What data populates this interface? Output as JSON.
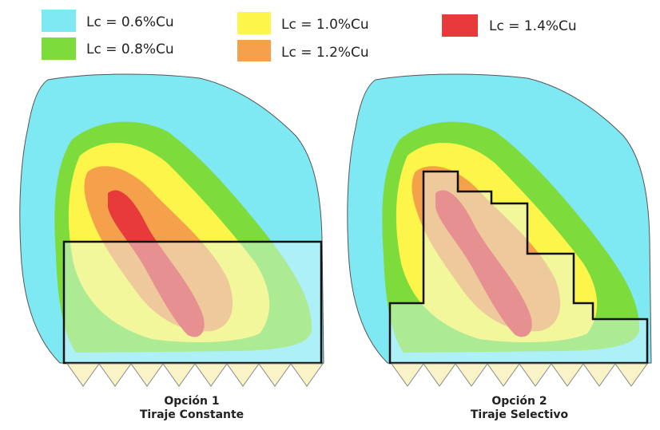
{
  "legend": [
    {
      "label": "Lc = 0.6%Cu"
    },
    {
      "label": "Lc = 0.8%Cu"
    },
    {
      "label": "Lc = 1.0%Cu"
    },
    {
      "label": "Lc = 1.2%Cu"
    },
    {
      "label": "Lc = 1.4%Cu"
    }
  ],
  "panels": [
    {
      "option": "Opción 1",
      "subtitle": "Tiraje Constante"
    },
    {
      "option": "Opción 2",
      "subtitle": "Tiraje Selectivo"
    }
  ]
}
